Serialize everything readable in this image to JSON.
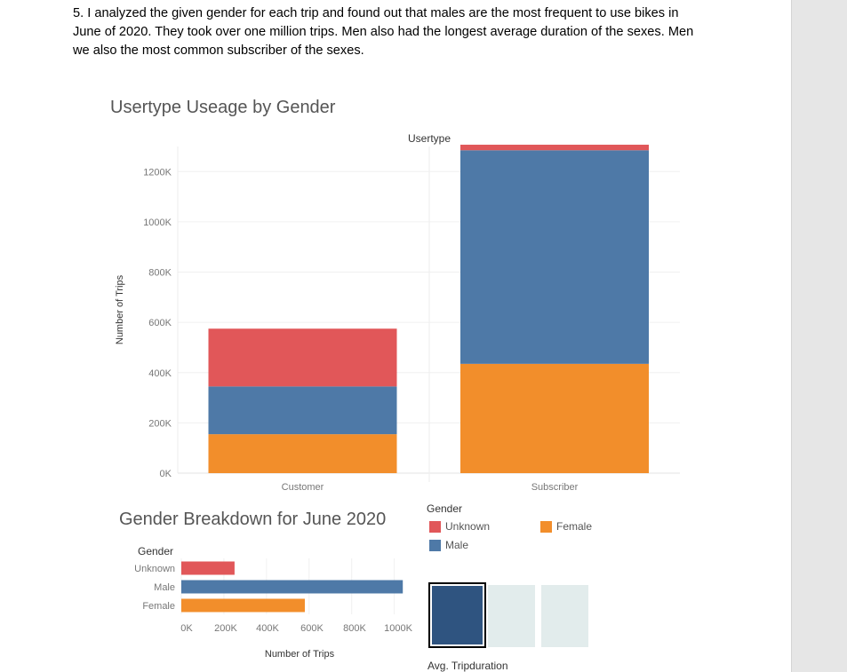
{
  "paragraph": "5. I analyzed the given gender for each trip and found out that males are the most frequent to use bikes in June of 2020. They took over one million trips. Men also had the longest average duration of the sexes. Men we also the most common subscriber of the sexes.",
  "colors": {
    "unknown": "#e15759",
    "male": "#4e79a7",
    "female": "#f28e2b",
    "avg_dark": "#2f5480",
    "avg_light": "#e2ecec"
  },
  "chart_data": [
    {
      "type": "bar",
      "stacked": true,
      "title": "Usertype Useage by Gender",
      "column_header": "Usertype",
      "categories": [
        "Customer",
        "Subscriber"
      ],
      "series": [
        {
          "name": "Female",
          "values": [
            155000,
            435000
          ]
        },
        {
          "name": "Male",
          "values": [
            190000,
            850000
          ]
        },
        {
          "name": "Unknown",
          "values": [
            230000,
            22000
          ]
        }
      ],
      "ylabel": "Number of Trips",
      "yticks": [
        "0K",
        "200K",
        "400K",
        "600K",
        "800K",
        "1000K",
        "1200K"
      ],
      "ylim": [
        0,
        1300000
      ]
    },
    {
      "type": "bar",
      "orientation": "horizontal",
      "title": "Gender Breakdown for June 2020",
      "row_header": "Gender",
      "categories": [
        "Unknown",
        "Male",
        "Female"
      ],
      "values": [
        250000,
        1040000,
        580000
      ],
      "xlabel": "Number of Trips",
      "xticks": [
        "0K",
        "200K",
        "400K",
        "600K",
        "800K",
        "1000K"
      ],
      "xlim": [
        0,
        1060000
      ]
    },
    {
      "type": "heatmap",
      "label": "Avg. Tripduration",
      "cells": 3,
      "highlighted_cell": 1
    }
  ],
  "legend": {
    "title": "Gender",
    "items": [
      {
        "label": "Unknown",
        "color": "#e15759"
      },
      {
        "label": "Female",
        "color": "#f28e2b"
      },
      {
        "label": "Male",
        "color": "#4e79a7"
      }
    ]
  }
}
